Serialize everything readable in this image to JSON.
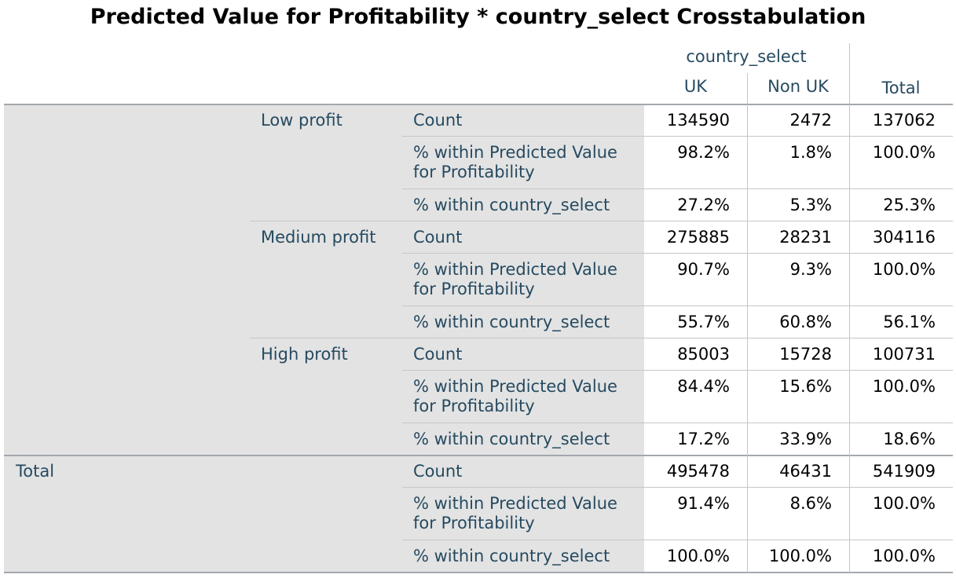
{
  "title": "Predicted Value for Profitability * country_select Crosstabulation",
  "header": {
    "group": "country_select",
    "columns": [
      "UK",
      "Non UK"
    ],
    "total": "Total"
  },
  "row_group_label": "Predicted Value for Profitability",
  "stat_labels": {
    "count": "Count",
    "within_row": "% within Predicted Value for Profitability",
    "within_col": "% within country_select"
  },
  "groups": [
    {
      "label": "Low profit",
      "rows": [
        {
          "stat": "Count",
          "uk": "134590",
          "nonuk": "2472",
          "total": "137062"
        },
        {
          "stat": "% within Predicted Value for Profitability",
          "uk": "98.2%",
          "nonuk": "1.8%",
          "total": "100.0%"
        },
        {
          "stat": "% within country_select",
          "uk": "27.2%",
          "nonuk": "5.3%",
          "total": "25.3%"
        }
      ]
    },
    {
      "label": "Medium profit",
      "rows": [
        {
          "stat": "Count",
          "uk": "275885",
          "nonuk": "28231",
          "total": "304116"
        },
        {
          "stat": "% within Predicted Value for Profitability",
          "uk": "90.7%",
          "nonuk": "9.3%",
          "total": "100.0%"
        },
        {
          "stat": "% within country_select",
          "uk": "55.7%",
          "nonuk": "60.8%",
          "total": "56.1%"
        }
      ]
    },
    {
      "label": "High profit",
      "rows": [
        {
          "stat": "Count",
          "uk": "85003",
          "nonuk": "15728",
          "total": "100731"
        },
        {
          "stat": "% within Predicted Value for Profitability",
          "uk": "84.4%",
          "nonuk": "15.6%",
          "total": "100.0%"
        },
        {
          "stat": "% within country_select",
          "uk": "17.2%",
          "nonuk": "33.9%",
          "total": "18.6%"
        }
      ]
    }
  ],
  "total_section": {
    "label": "Total",
    "rows": [
      {
        "stat": "Count",
        "uk": "495478",
        "nonuk": "46431",
        "total": "541909"
      },
      {
        "stat": "% within Predicted Value for Profitability",
        "uk": "91.4%",
        "nonuk": "8.6%",
        "total": "100.0%"
      },
      {
        "stat": "% within country_select",
        "uk": "100.0%",
        "nonuk": "100.0%",
        "total": "100.0%"
      }
    ]
  }
}
